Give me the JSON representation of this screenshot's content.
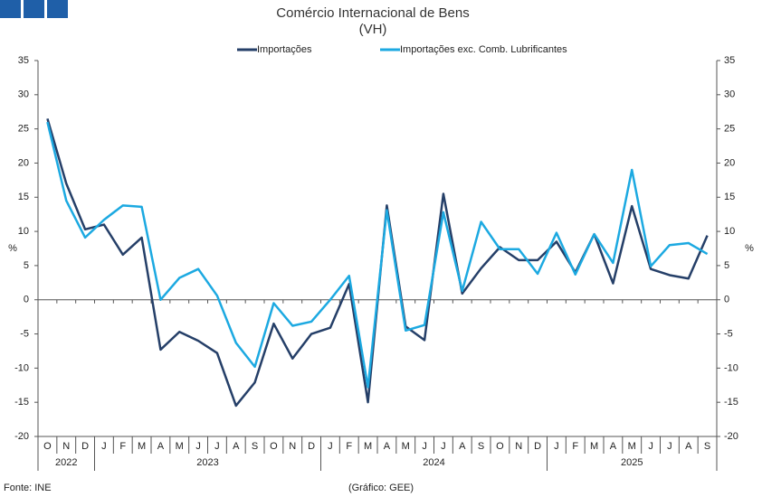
{
  "chart_data": {
    "type": "line",
    "title": "Comércio Internacional de Bens",
    "subtitle": "(VH)",
    "y_label": "%",
    "y2_label": "%",
    "legend": "top",
    "category_groups": [
      {
        "name": "2022",
        "categories": [
          "O",
          "N",
          "D"
        ]
      },
      {
        "name": "2023",
        "categories": [
          "J",
          "F",
          "M",
          "A",
          "M",
          "J",
          "J",
          "A",
          "S",
          "O",
          "N",
          "D"
        ]
      },
      {
        "name": "2024",
        "categories": [
          "J",
          "F",
          "M",
          "A",
          "M",
          "J",
          "J",
          "A",
          "S",
          "O",
          "N",
          "D"
        ]
      },
      {
        "name": "2025",
        "categories": [
          "J",
          "F",
          "M",
          "A",
          "M",
          "J",
          "J",
          "A",
          "S"
        ]
      }
    ],
    "series": [
      {
        "name": "Importações",
        "color": "#253f68",
        "values": [
          26.5,
          17,
          10.3,
          11,
          6.6,
          9.1,
          -7.3,
          -4.7,
          -6,
          -7.8,
          -15.5,
          -12.1,
          -3.5,
          -8.6,
          -5,
          -4.1,
          2.3,
          -15,
          13.8,
          -3.9,
          -5.9,
          15.5,
          0.9,
          4.6,
          7.7,
          5.8,
          5.8,
          8.5,
          4,
          9.6,
          2.4,
          13.7,
          4.5,
          3.6,
          3.1,
          9.4
        ]
      },
      {
        "name": "Importações exc. Comb. Lubrificantes",
        "color": "#1ca9e1",
        "values": [
          26,
          14.5,
          9.1,
          11.7,
          13.8,
          13.6,
          0,
          3.2,
          4.5,
          0.6,
          -6.3,
          -9.8,
          -0.5,
          -3.8,
          -3.2,
          0,
          3.5,
          -12.8,
          13.1,
          -4.5,
          -3.7,
          12.8,
          1.3,
          11.4,
          7.4,
          7.4,
          3.8,
          9.8,
          3.7,
          9.6,
          5.4,
          19,
          4.9,
          8,
          8.3,
          6.7
        ]
      }
    ],
    "ylim": [
      -20,
      35
    ],
    "yticks": [
      -20,
      -15,
      -10,
      -5,
      0,
      5,
      10,
      15,
      20,
      25,
      30,
      35
    ],
    "y2lim": [
      -20,
      35
    ],
    "y2ticks": [
      -20,
      -15,
      -10,
      -5,
      0,
      5,
      10,
      15,
      20,
      25,
      30,
      35
    ],
    "source": "Fonte: INE",
    "credit": "(Gráfico: GEE)"
  }
}
